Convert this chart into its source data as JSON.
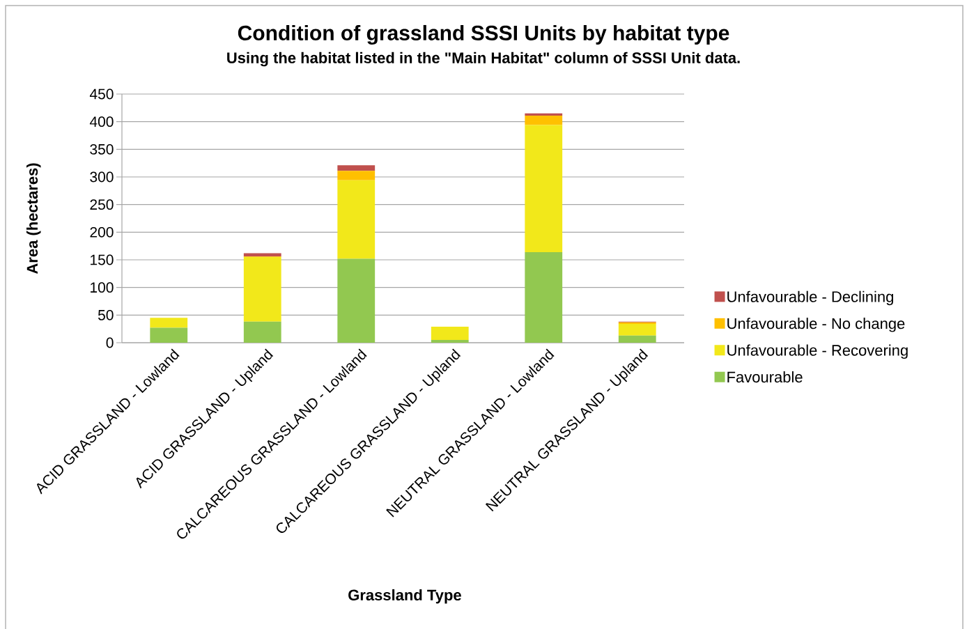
{
  "chart_data": {
    "type": "bar",
    "stacked": true,
    "title": "Condition of grassland SSSI Units by habitat type",
    "subtitle": "Using the habitat listed in the \"Main Habitat\" column of SSSI Unit data.",
    "xlabel": "Grassland Type",
    "ylabel": "Area (hectares)",
    "categories": [
      "ACID GRASSLAND - Lowland",
      "ACID GRASSLAND - Upland",
      "CALCAREOUS GRASSLAND - Lowland",
      "CALCAREOUS GRASSLAND - Upland",
      "NEUTRAL GRASSLAND - Lowland",
      "NEUTRAL GRASSLAND - Upland"
    ],
    "series": [
      {
        "name": "Favourable",
        "color": "#92c850",
        "values": [
          27,
          38,
          152,
          5,
          164,
          13
        ]
      },
      {
        "name": "Unfavourable - Recovering",
        "color": "#f2e81a",
        "values": [
          18,
          117,
          142,
          24,
          230,
          21
        ]
      },
      {
        "name": "Unfavourable - No change",
        "color": "#ffc000",
        "values": [
          0,
          1,
          17,
          0,
          17,
          3
        ]
      },
      {
        "name": "Unfavourable - Declining",
        "color": "#c0504d",
        "values": [
          0,
          6,
          10,
          0,
          4,
          1
        ]
      }
    ],
    "ylim": [
      0,
      450
    ],
    "yticks": [
      0,
      50,
      100,
      150,
      200,
      250,
      300,
      350,
      400,
      450
    ],
    "grid": "y",
    "legend": "right"
  }
}
